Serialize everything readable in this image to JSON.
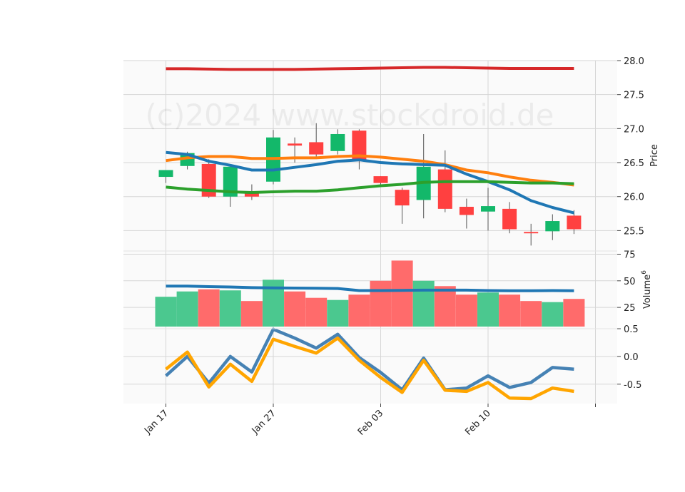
{
  "chart_data": {
    "type": "candlestick",
    "watermark": "(c)2024 www.stockdroid.de",
    "x_tick_labels": [
      "Jan 17",
      "Jan 27",
      "Feb 03",
      "Feb 10"
    ],
    "colors": {
      "up": "#13b86a",
      "down": "#ff4040",
      "vol_up": "#4bc88f",
      "vol_down": "#ff6b6b",
      "red_line": "#d62728",
      "orange_line": "#ff7f0e",
      "blue_line": "#1f77b4",
      "green_line": "#2ca02c",
      "lower_blue": "#4682b4",
      "lower_orange": "#ffa500"
    },
    "price_panel": {
      "ylabel": "Price",
      "ylim": [
        25.2,
        28.0
      ],
      "yticks": [
        "25.5",
        "26.0",
        "26.5",
        "27.0",
        "27.5",
        "28.0"
      ],
      "candles": [
        {
          "open": 26.29,
          "close": 26.39,
          "high": 26.39,
          "low": 26.2
        },
        {
          "open": 26.45,
          "close": 26.64,
          "high": 26.66,
          "low": 26.4
        },
        {
          "open": 26.48,
          "close": 26.0,
          "high": 26.55,
          "low": 25.98
        },
        {
          "open": 26.0,
          "close": 26.44,
          "high": 26.46,
          "low": 25.85
        },
        {
          "open": 26.08,
          "close": 26.0,
          "high": 26.18,
          "low": 25.95
        },
        {
          "open": 26.22,
          "close": 26.87,
          "high": 26.98,
          "low": 26.18
        },
        {
          "open": 26.78,
          "close": 26.75,
          "high": 26.87,
          "low": 26.5
        },
        {
          "open": 26.8,
          "close": 26.62,
          "high": 27.08,
          "low": 26.58
        },
        {
          "open": 26.67,
          "close": 26.92,
          "high": 26.99,
          "low": 26.62
        },
        {
          "open": 26.97,
          "close": 26.52,
          "high": 26.99,
          "low": 26.4
        },
        {
          "open": 26.3,
          "close": 26.2,
          "high": 26.3,
          "low": 26.15
        },
        {
          "open": 26.1,
          "close": 25.87,
          "high": 26.13,
          "low": 25.6
        },
        {
          "open": 25.95,
          "close": 26.44,
          "high": 26.92,
          "low": 25.68
        },
        {
          "open": 26.4,
          "close": 25.82,
          "high": 26.68,
          "low": 25.77
        },
        {
          "open": 25.85,
          "close": 25.73,
          "high": 25.97,
          "low": 25.53
        },
        {
          "open": 25.78,
          "close": 25.86,
          "high": 26.13,
          "low": 25.5
        },
        {
          "open": 25.82,
          "close": 25.52,
          "high": 25.92,
          "low": 25.46
        },
        {
          "open": 25.48,
          "close": 25.46,
          "high": 25.6,
          "low": 25.28
        },
        {
          "open": 25.49,
          "close": 25.64,
          "high": 25.74,
          "low": 25.36
        },
        {
          "open": 25.72,
          "close": 25.52,
          "high": 25.8,
          "low": 25.45
        }
      ],
      "lines": [
        {
          "color_key": "red_line",
          "values": [
            27.88,
            27.88,
            27.875,
            27.87,
            27.87,
            27.87,
            27.87,
            27.875,
            27.88,
            27.885,
            27.89,
            27.895,
            27.9,
            27.9,
            27.895,
            27.89,
            27.885,
            27.885,
            27.885,
            27.885
          ]
        },
        {
          "color_key": "orange_line",
          "values": [
            26.53,
            26.57,
            26.59,
            26.59,
            26.56,
            26.56,
            26.57,
            26.57,
            26.59,
            26.6,
            26.58,
            26.55,
            26.52,
            26.47,
            26.39,
            26.35,
            26.29,
            26.24,
            26.21,
            26.17
          ]
        },
        {
          "color_key": "blue_line",
          "values": [
            26.65,
            26.62,
            26.52,
            26.46,
            26.39,
            26.39,
            26.43,
            26.47,
            26.52,
            26.54,
            26.5,
            26.48,
            26.47,
            26.46,
            26.33,
            26.22,
            26.1,
            25.94,
            25.84,
            25.76
          ]
        },
        {
          "color_key": "green_line",
          "values": [
            26.14,
            26.11,
            26.09,
            26.07,
            26.06,
            26.07,
            26.08,
            26.08,
            26.1,
            26.13,
            26.16,
            26.18,
            26.21,
            26.22,
            26.22,
            26.22,
            26.21,
            26.2,
            26.2,
            26.19
          ]
        }
      ]
    },
    "volume_panel": {
      "ylabel": "Volume",
      "ylabel_exponent": "6",
      "ylim": [
        5,
        78
      ],
      "yticks": [
        "25",
        "50",
        "75"
      ],
      "bars": [
        35,
        40,
        42,
        41,
        31,
        51,
        40,
        34,
        32,
        37,
        50,
        69,
        50,
        45,
        37,
        39,
        37,
        31,
        30,
        33
      ],
      "ma_values": [
        45,
        45,
        44.5,
        44.2,
        43.6,
        43.4,
        43.2,
        43.0,
        42.8,
        40.8,
        40.8,
        41.0,
        41.2,
        41.2,
        41.2,
        40.8,
        40.6,
        40.6,
        40.8,
        40.6
      ]
    },
    "lower_panel": {
      "ylim": [
        -0.85,
        0.5
      ],
      "yticks": [
        "-0.5",
        "0.0",
        "0.5"
      ],
      "lines": [
        {
          "color_key": "lower_blue",
          "values": [
            -0.35,
            0.0,
            -0.48,
            0.0,
            -0.28,
            0.49,
            0.33,
            0.15,
            0.4,
            -0.02,
            -0.29,
            -0.6,
            -0.03,
            -0.6,
            -0.57,
            -0.35,
            -0.56,
            -0.47,
            -0.2,
            -0.23
          ]
        },
        {
          "color_key": "lower_orange",
          "values": [
            -0.23,
            0.08,
            -0.55,
            -0.14,
            -0.45,
            0.31,
            0.18,
            0.06,
            0.33,
            -0.07,
            -0.38,
            -0.65,
            -0.07,
            -0.61,
            -0.63,
            -0.47,
            -0.75,
            -0.76,
            -0.57,
            -0.63
          ]
        }
      ]
    }
  }
}
